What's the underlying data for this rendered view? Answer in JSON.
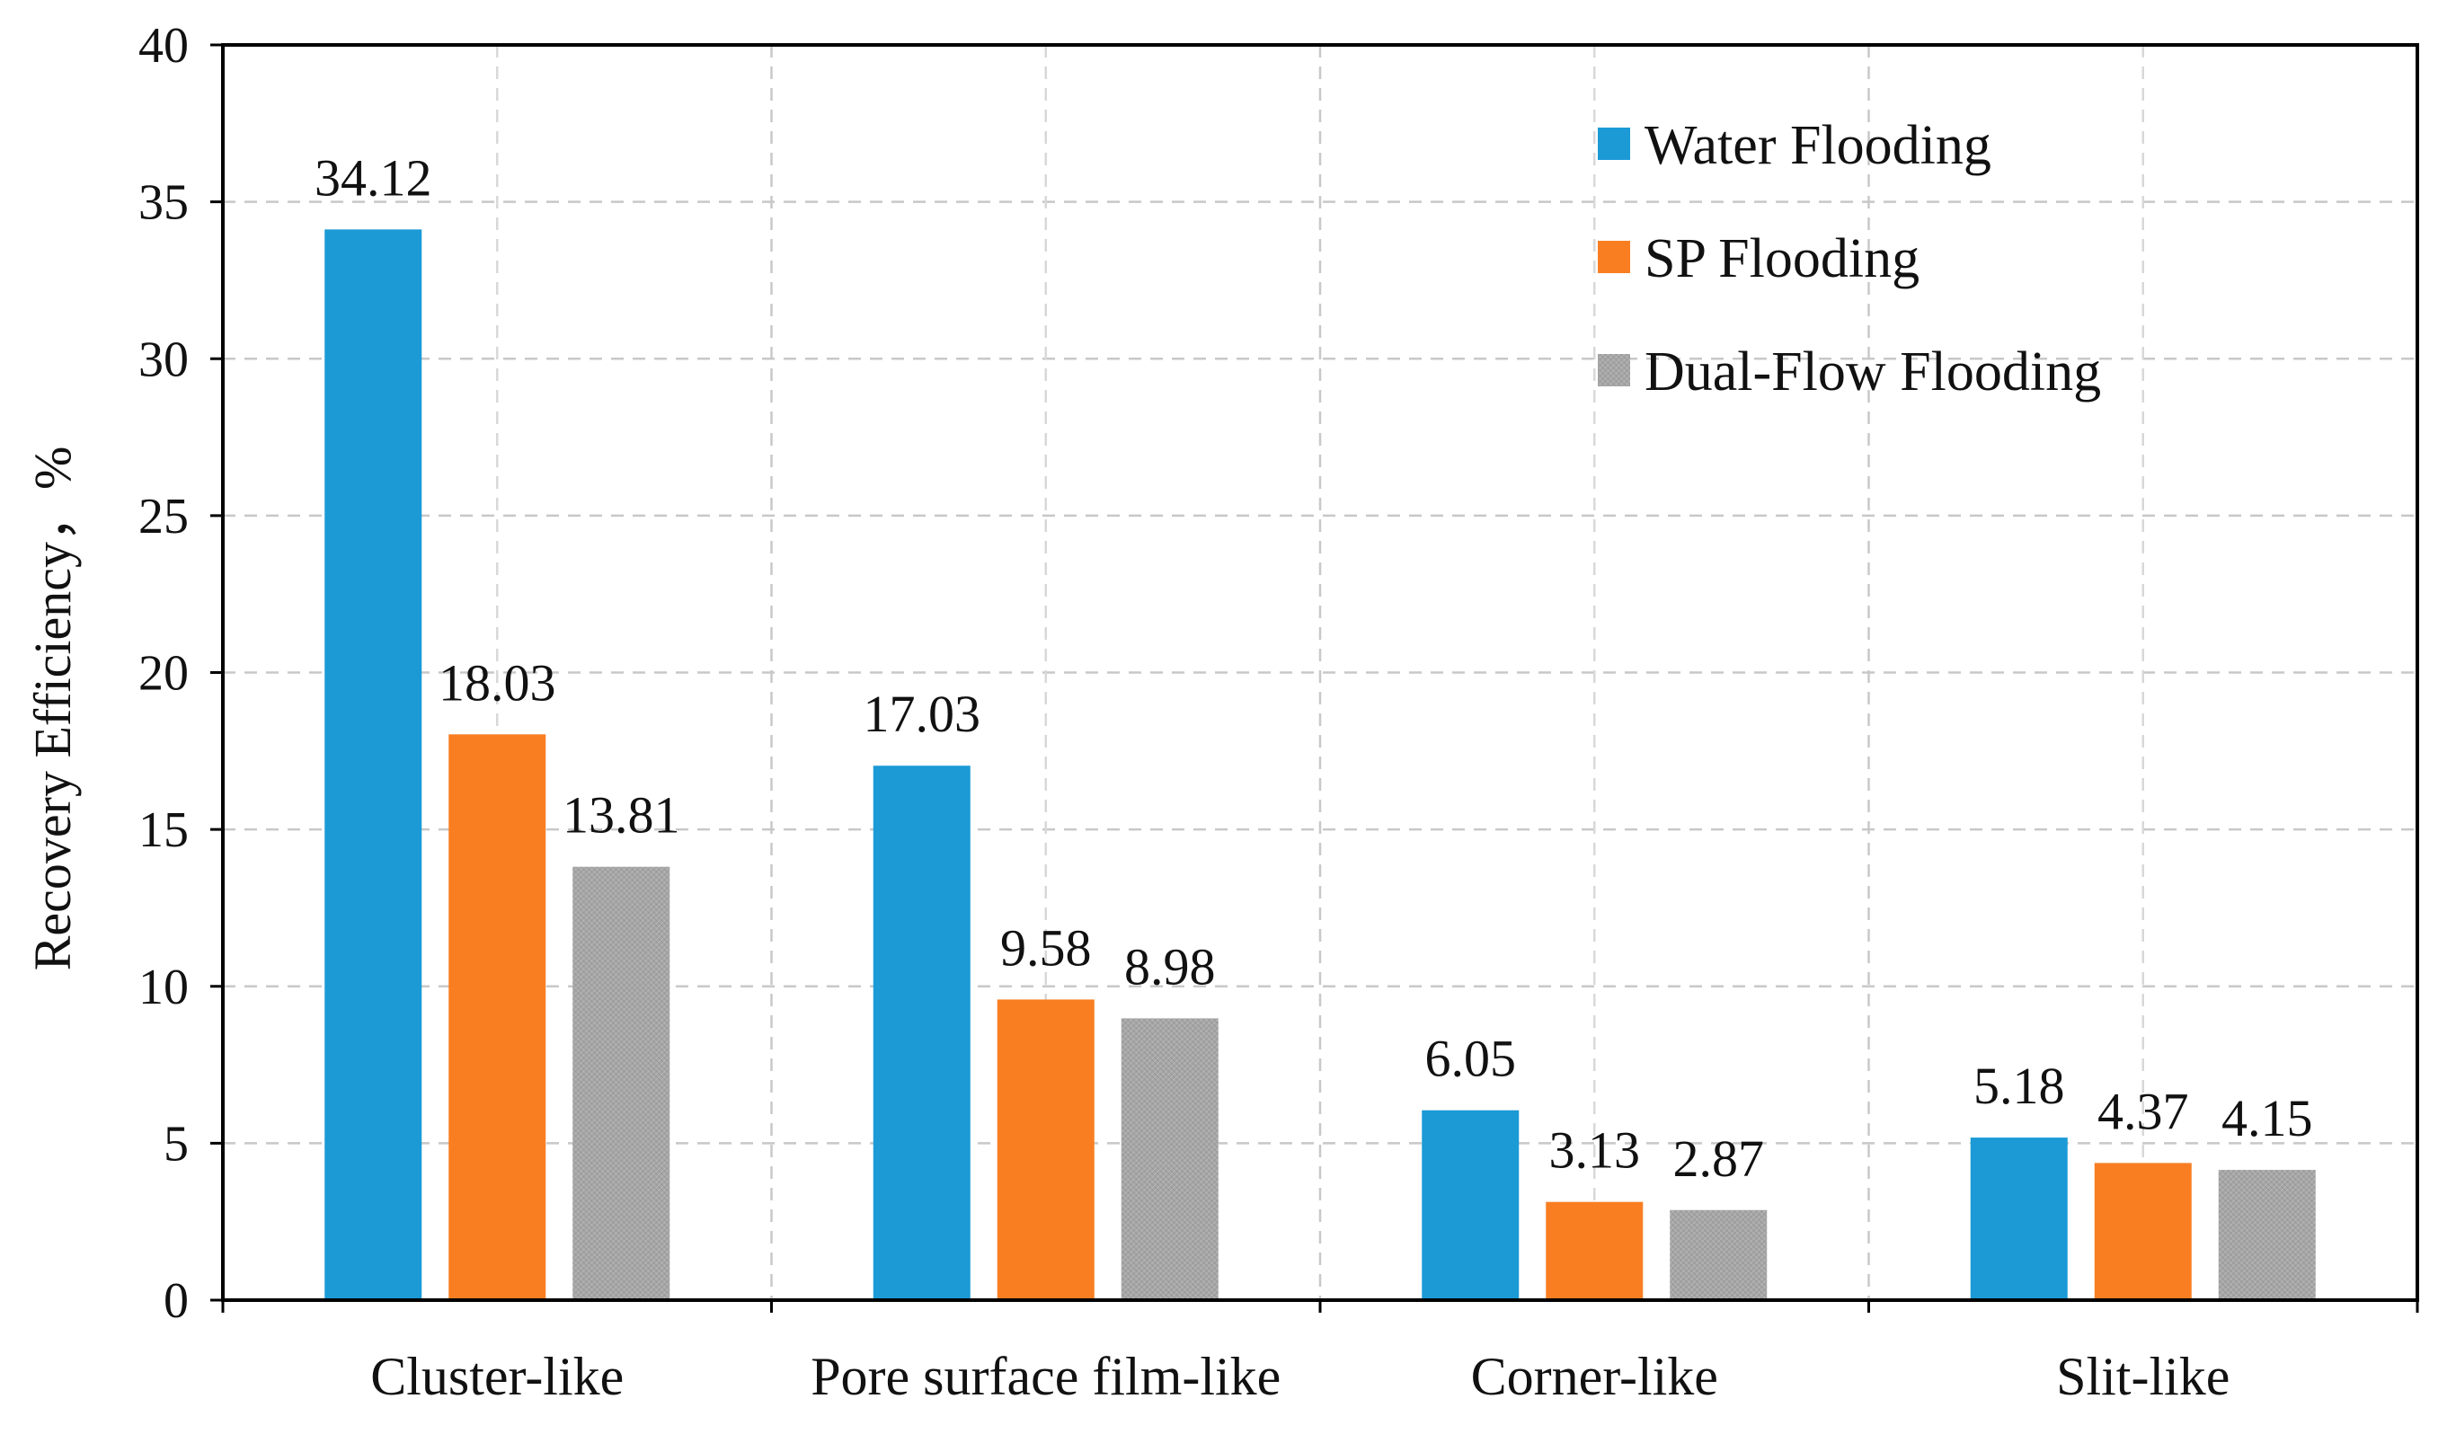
{
  "chart_data": {
    "type": "bar",
    "title": "",
    "xlabel": "",
    "ylabel": "Recovery Efficiency，%",
    "ylim": [
      0,
      40
    ],
    "yticks": [
      0,
      5,
      10,
      15,
      20,
      25,
      30,
      35,
      40
    ],
    "ytick_labels": [
      "0",
      "5",
      "10",
      "15",
      "20",
      "25",
      "30",
      "35",
      "40"
    ],
    "grid": true,
    "legend_position": "top-right",
    "categories": [
      "Cluster-like",
      "Pore surface film-like",
      "Corner-like",
      "Slit-like"
    ],
    "series": [
      {
        "name": "Water Flooding",
        "color": "#1b9ad6",
        "values": [
          34.12,
          17.03,
          6.05,
          5.18
        ],
        "labels": [
          "34.12",
          "17.03",
          "6.05",
          "5.18"
        ]
      },
      {
        "name": "SP Flooding",
        "color": "#f97e22",
        "values": [
          18.03,
          9.58,
          3.13,
          4.37
        ],
        "labels": [
          "18.03",
          "9.58",
          "3.13",
          "4.37"
        ]
      },
      {
        "name": "Dual-Flow Flooding",
        "color": "#a6a6a6",
        "values": [
          13.81,
          8.98,
          2.87,
          4.15
        ],
        "labels": [
          "13.81",
          "8.98",
          "2.87",
          "4.15"
        ]
      }
    ]
  }
}
